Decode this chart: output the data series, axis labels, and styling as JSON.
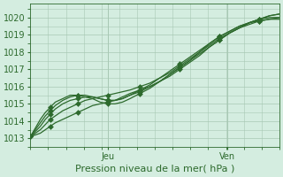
{
  "bg_color": "#d4ede0",
  "grid_color": "#a8c8b4",
  "line_color": "#2d6a2d",
  "marker_color": "#2d6a2d",
  "xlabel_text": "Pression niveau de la mer( hPa )",
  "ylim": [
    1012.5,
    1020.8
  ],
  "xlim": [
    0.0,
    1.0
  ],
  "yticks": [
    1013,
    1014,
    1015,
    1016,
    1017,
    1018,
    1019,
    1020
  ],
  "xtick_positions": [
    0.31,
    0.79
  ],
  "xtick_labels": [
    "Jeu",
    "Ven"
  ],
  "vline_positions": [
    0.31,
    0.79
  ],
  "series": [
    {
      "x": [
        0.0,
        0.02,
        0.04,
        0.06,
        0.08,
        0.1,
        0.13,
        0.16,
        0.19,
        0.22,
        0.25,
        0.28,
        0.31,
        0.34,
        0.37,
        0.4,
        0.44,
        0.48,
        0.52,
        0.56,
        0.6,
        0.64,
        0.68,
        0.72,
        0.76,
        0.8,
        0.84,
        0.88,
        0.92,
        0.96,
        1.0
      ],
      "y": [
        1013.1,
        1013.2,
        1013.3,
        1013.5,
        1013.7,
        1013.9,
        1014.1,
        1014.3,
        1014.5,
        1014.7,
        1014.9,
        1015.0,
        1015.1,
        1015.2,
        1015.4,
        1015.6,
        1015.8,
        1016.0,
        1016.3,
        1016.6,
        1017.0,
        1017.4,
        1017.8,
        1018.3,
        1018.7,
        1019.1,
        1019.4,
        1019.6,
        1019.8,
        1019.9,
        1020.0
      ]
    },
    {
      "x": [
        0.0,
        0.02,
        0.04,
        0.06,
        0.08,
        0.1,
        0.13,
        0.16,
        0.19,
        0.22,
        0.25,
        0.28,
        0.31,
        0.34,
        0.37,
        0.4,
        0.44,
        0.48,
        0.52,
        0.56,
        0.6,
        0.64,
        0.68,
        0.72,
        0.76,
        0.8,
        0.84,
        0.88,
        0.92,
        0.96,
        1.0
      ],
      "y": [
        1013.1,
        1013.3,
        1013.5,
        1013.8,
        1014.1,
        1014.3,
        1014.6,
        1014.8,
        1015.0,
        1015.2,
        1015.3,
        1015.4,
        1015.5,
        1015.6,
        1015.7,
        1015.8,
        1016.0,
        1016.2,
        1016.5,
        1016.9,
        1017.3,
        1017.7,
        1018.1,
        1018.5,
        1018.9,
        1019.2,
        1019.5,
        1019.7,
        1019.9,
        1020.1,
        1020.2
      ]
    },
    {
      "x": [
        0.0,
        0.02,
        0.04,
        0.06,
        0.08,
        0.1,
        0.13,
        0.16,
        0.19,
        0.22,
        0.25,
        0.28,
        0.31,
        0.34,
        0.37,
        0.4,
        0.44,
        0.48,
        0.52,
        0.56,
        0.6,
        0.64,
        0.68,
        0.72,
        0.76,
        0.8,
        0.84,
        0.88,
        0.92,
        0.96,
        1.0
      ],
      "y": [
        1013.1,
        1013.4,
        1013.7,
        1014.1,
        1014.4,
        1014.7,
        1015.0,
        1015.2,
        1015.3,
        1015.4,
        1015.4,
        1015.3,
        1015.2,
        1015.2,
        1015.3,
        1015.5,
        1015.7,
        1016.0,
        1016.3,
        1016.7,
        1017.1,
        1017.5,
        1018.0,
        1018.4,
        1018.8,
        1019.1,
        1019.4,
        1019.7,
        1019.9,
        1020.1,
        1020.2
      ]
    },
    {
      "x": [
        0.0,
        0.02,
        0.04,
        0.06,
        0.08,
        0.1,
        0.13,
        0.16,
        0.19,
        0.22,
        0.25,
        0.28,
        0.31,
        0.34,
        0.37,
        0.4,
        0.44,
        0.48,
        0.52,
        0.56,
        0.6,
        0.64,
        0.68,
        0.72,
        0.76,
        0.8,
        0.84,
        0.88,
        0.92,
        0.96,
        1.0
      ],
      "y": [
        1013.1,
        1013.5,
        1013.9,
        1014.3,
        1014.6,
        1014.9,
        1015.2,
        1015.4,
        1015.5,
        1015.5,
        1015.4,
        1015.3,
        1015.2,
        1015.2,
        1015.3,
        1015.5,
        1015.8,
        1016.1,
        1016.5,
        1016.8,
        1017.2,
        1017.6,
        1018.0,
        1018.5,
        1018.9,
        1019.2,
        1019.5,
        1019.7,
        1019.9,
        1020.0,
        1020.0
      ]
    },
    {
      "x": [
        0.0,
        0.02,
        0.04,
        0.06,
        0.08,
        0.1,
        0.13,
        0.16,
        0.19,
        0.22,
        0.25,
        0.28,
        0.31,
        0.34,
        0.37,
        0.4,
        0.44,
        0.48,
        0.52,
        0.56,
        0.6,
        0.64,
        0.68,
        0.72,
        0.76,
        0.8,
        0.84,
        0.88,
        0.92,
        0.96,
        1.0
      ],
      "y": [
        1013.1,
        1013.6,
        1014.1,
        1014.5,
        1014.8,
        1015.1,
        1015.3,
        1015.5,
        1015.5,
        1015.4,
        1015.3,
        1015.1,
        1015.0,
        1015.0,
        1015.1,
        1015.3,
        1015.6,
        1015.9,
        1016.3,
        1016.7,
        1017.1,
        1017.5,
        1017.9,
        1018.3,
        1018.7,
        1019.1,
        1019.4,
        1019.7,
        1019.8,
        1019.9,
        1019.9
      ]
    }
  ],
  "linewidth": 0.9,
  "markersize": 3.0,
  "fontsize_tick": 7,
  "fontsize_xlabel": 8,
  "marker_every": 4
}
